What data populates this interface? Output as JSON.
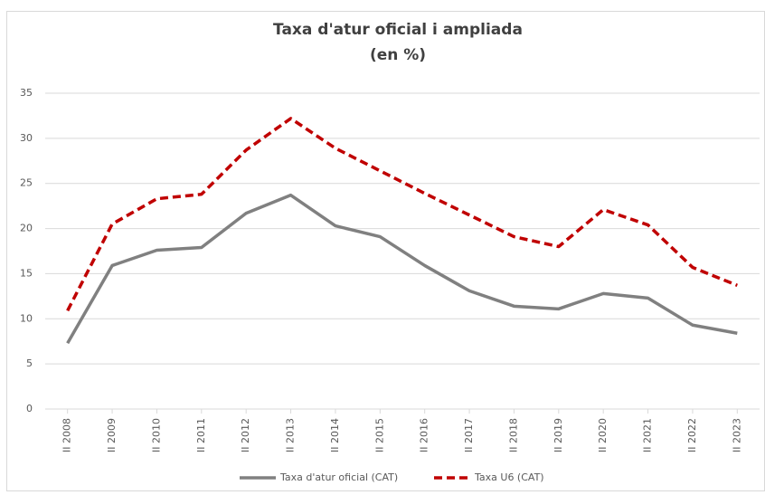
{
  "chart_data": {
    "type": "line",
    "title": "Taxa d'atur oficial i ampliada",
    "subtitle": "(en %)",
    "categories": [
      "II 2008",
      "II 2009",
      "II 2010",
      "II 2011",
      "II 2012",
      "II 2013",
      "II 2014",
      "II 2015",
      "II 2016",
      "II 2017",
      "II 2018",
      "II 2019",
      "II 2020",
      "II 2021",
      "II 2022",
      "II 2023"
    ],
    "series": [
      {
        "name": "Taxa d'atur oficial (CAT)",
        "color": "#808080",
        "line_style": "solid",
        "values": [
          7.3,
          15.9,
          17.6,
          17.9,
          21.7,
          23.7,
          20.3,
          19.1,
          15.9,
          13.1,
          11.4,
          11.1,
          12.8,
          12.3,
          9.3,
          8.4
        ]
      },
      {
        "name": "Taxa U6 (CAT)",
        "color": "#c00000",
        "line_style": "dashed",
        "values": [
          10.9,
          20.5,
          23.3,
          23.8,
          28.7,
          32.2,
          28.9,
          26.4,
          23.9,
          21.5,
          19.1,
          18.0,
          22.1,
          20.4,
          15.7,
          13.7
        ]
      }
    ],
    "ylim": [
      0,
      35
    ],
    "yticks": [
      0,
      5,
      10,
      15,
      20,
      25,
      30,
      35
    ],
    "grid": true,
    "legend": "bottom"
  }
}
